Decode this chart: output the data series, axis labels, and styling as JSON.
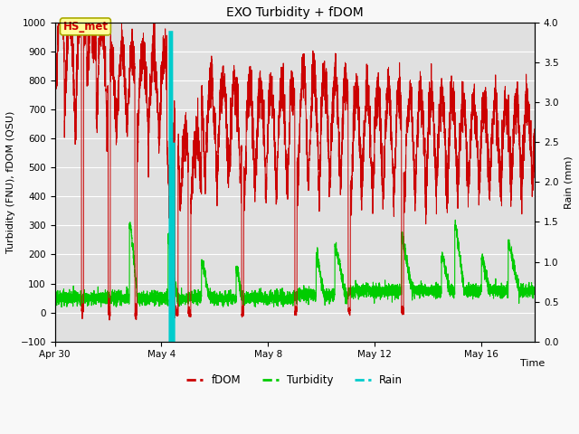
{
  "title": "EXO Turbidity + fDOM",
  "xlabel": "Time",
  "ylabel_left": "Turbidity (FNU), fDOM (QSU)",
  "ylabel_right": "Rain (mm)",
  "ylim_left": [
    -100,
    1000
  ],
  "ylim_right": [
    0.0,
    4.0
  ],
  "yticks_left": [
    -100,
    0,
    100,
    200,
    300,
    400,
    500,
    600,
    700,
    800,
    900,
    1000
  ],
  "yticks_right": [
    0.0,
    0.5,
    1.0,
    1.5,
    2.0,
    2.5,
    3.0,
    3.5,
    4.0
  ],
  "xlim": [
    0,
    18
  ],
  "xtick_labels": [
    "Apr 30",
    "May 4",
    "May 8",
    "May 12",
    "May 16"
  ],
  "xtick_positions": [
    0,
    4,
    8,
    12,
    16
  ],
  "annotation_text": "HS_met",
  "fdom_color": "#cc0000",
  "turbidity_color": "#00cc00",
  "rain_color": "#00cccc",
  "fig_bg": "#f8f8f8",
  "ax_bg": "#e0e0e0",
  "grid_color": "#ffffff"
}
